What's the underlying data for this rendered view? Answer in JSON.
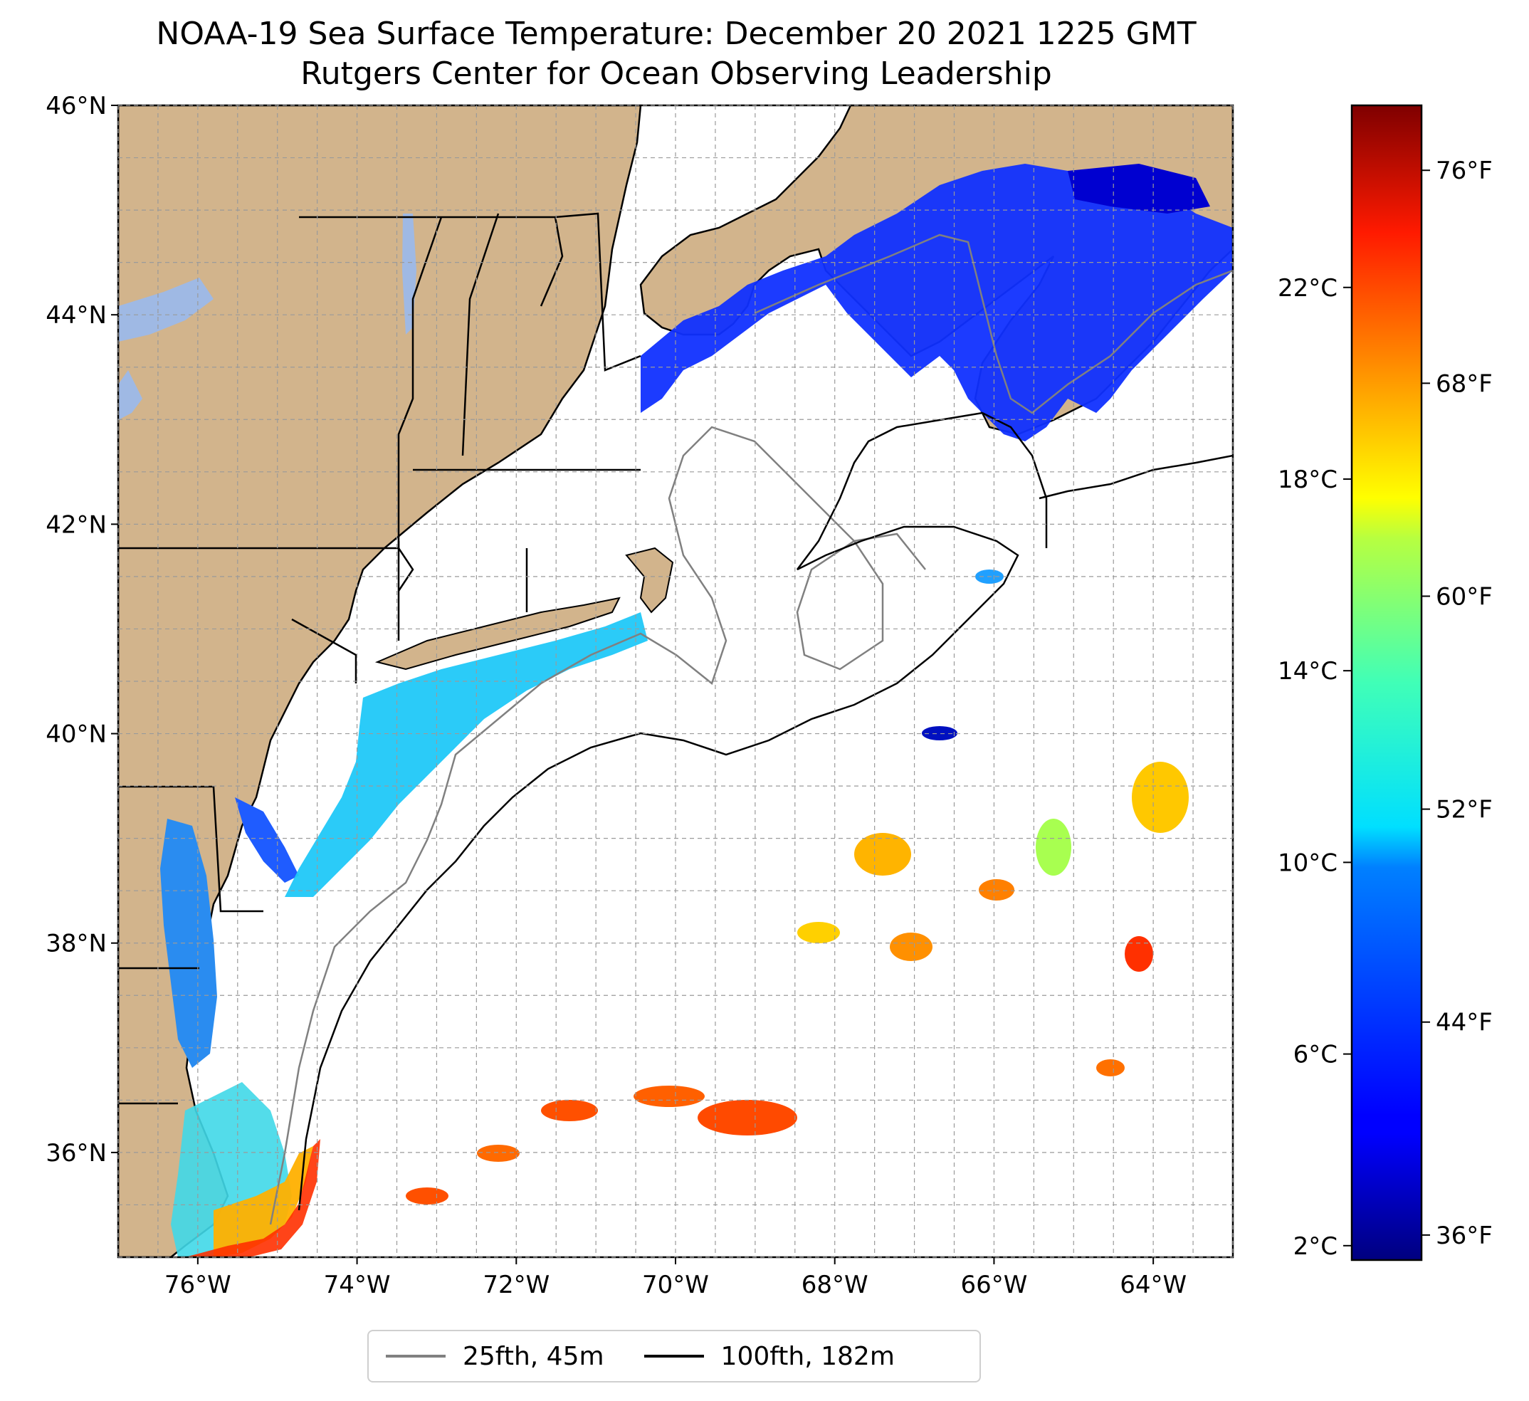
{
  "title": {
    "line1": "NOAA-19 Sea Surface Temperature: December 20 2021 1225 GMT",
    "line2": "Rutgers Center for Ocean Observing Leadership"
  },
  "map": {
    "lon_range": [
      -77,
      -63
    ],
    "lat_range": [
      35,
      46
    ],
    "lat_ticks": [
      {
        "value": 46,
        "label": "46°N"
      },
      {
        "value": 44,
        "label": "44°N"
      },
      {
        "value": 42,
        "label": "42°N"
      },
      {
        "value": 40,
        "label": "40°N"
      },
      {
        "value": 38,
        "label": "38°N"
      },
      {
        "value": 36,
        "label": "36°N"
      }
    ],
    "lon_ticks": [
      {
        "value": -76,
        "label": "76°W"
      },
      {
        "value": -74,
        "label": "74°W"
      },
      {
        "value": -72,
        "label": "72°W"
      },
      {
        "value": -70,
        "label": "70°W"
      },
      {
        "value": -68,
        "label": "68°W"
      },
      {
        "value": -66,
        "label": "66°W"
      },
      {
        "value": -64,
        "label": "64°W"
      }
    ],
    "grid": true,
    "land_color": "#d2b48c",
    "lake_color": "#9fb9e4"
  },
  "colorbar": {
    "colormap": "jet",
    "celsius_ticks": [
      {
        "value": 2,
        "label": "2°C"
      },
      {
        "value": 6,
        "label": "6°C"
      },
      {
        "value": 10,
        "label": "10°C"
      },
      {
        "value": 14,
        "label": "14°C"
      },
      {
        "value": 18,
        "label": "18°C"
      },
      {
        "value": 22,
        "label": "22°C"
      }
    ],
    "fahrenheit_ticks": [
      {
        "value": 36,
        "label": "36°F"
      },
      {
        "value": 44,
        "label": "44°F"
      },
      {
        "value": 52,
        "label": "52°F"
      },
      {
        "value": 60,
        "label": "60°F"
      },
      {
        "value": 68,
        "label": "68°F"
      },
      {
        "value": 76,
        "label": "76°F"
      }
    ]
  },
  "legend": {
    "items": [
      {
        "label": "25fth, 45m",
        "color": "#808080"
      },
      {
        "label": "100fth, 182m",
        "color": "#000000"
      }
    ]
  }
}
